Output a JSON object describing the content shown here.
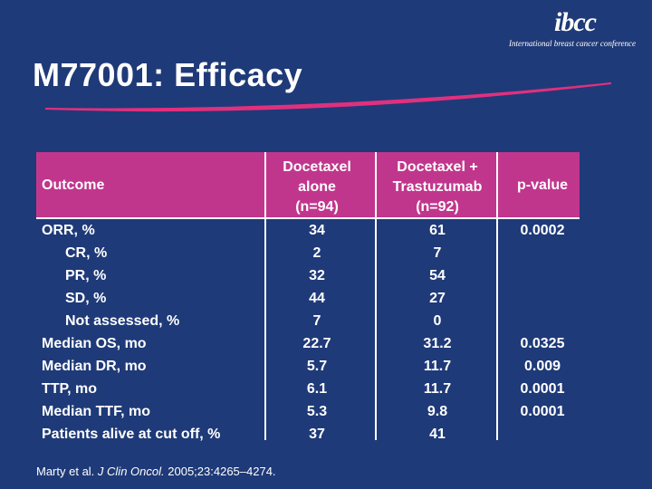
{
  "logo": {
    "mark": "ibcc",
    "tagline": "International breast cancer conference"
  },
  "slide": {
    "title": "M77001: Efficacy"
  },
  "table": {
    "headers": {
      "outcome": "Outcome",
      "col1_line1": "Docetaxel",
      "col1_line2": "alone",
      "col1_n": "(n=94)",
      "col2_line1": "Docetaxel +",
      "col2_line2": "Trastuzumab",
      "col2_n": "(n=92)",
      "col3": "p-value"
    },
    "rows": [
      {
        "label": "ORR, %",
        "indent": false,
        "v1": "34",
        "v2": "61",
        "p": "0.0002"
      },
      {
        "label": "CR, %",
        "indent": true,
        "v1": "2",
        "v2": "7",
        "p": ""
      },
      {
        "label": "PR, %",
        "indent": true,
        "v1": "32",
        "v2": "54",
        "p": ""
      },
      {
        "label": "SD, %",
        "indent": true,
        "v1": "44",
        "v2": "27",
        "p": ""
      },
      {
        "label": "Not assessed, %",
        "indent": true,
        "v1": "7",
        "v2": "0",
        "p": ""
      },
      {
        "label": "Median OS, mo",
        "indent": false,
        "v1": "22.7",
        "v2": "31.2",
        "p": "0.0325"
      },
      {
        "label": "Median DR, mo",
        "indent": false,
        "v1": "5.7",
        "v2": "11.7",
        "p": "0.009"
      },
      {
        "label": "TTP, mo",
        "indent": false,
        "v1": "6.1",
        "v2": "11.7",
        "p": "0.0001"
      },
      {
        "label": "Median TTF, mo",
        "indent": false,
        "v1": "5.3",
        "v2": "9.8",
        "p": "0.0001"
      },
      {
        "label": "Patients alive at cut off, %",
        "indent": false,
        "v1": "37",
        "v2": "41",
        "p": ""
      }
    ]
  },
  "citation": {
    "authors": "Marty et al.",
    "journal": "J Clin Oncol.",
    "ref": "2005;23:4265–4274."
  },
  "colors": {
    "background": "#1f3a78",
    "header_band": "#c1368d",
    "accent_swoosh": "#e0307e"
  }
}
